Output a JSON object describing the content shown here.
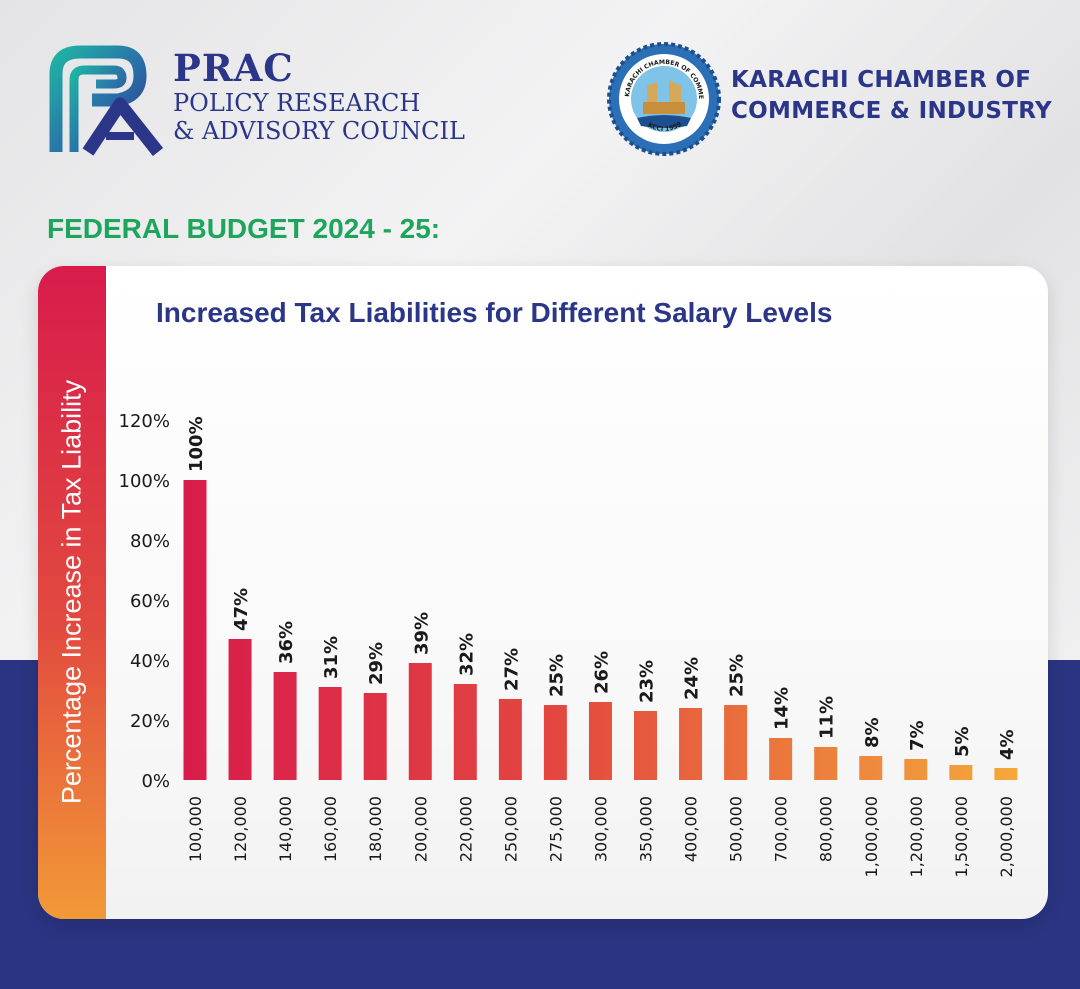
{
  "header": {
    "prac_name": "PRAC",
    "prac_line1": "POLICY RESEARCH",
    "prac_line2": "& ADVISORY COUNCIL",
    "kcci_line1": "KARACHI CHAMBER OF",
    "kcci_line2": "COMMERCE & INDUSTRY",
    "kcci_seal_text": "KARACHI CHAMBER OF COMMERCE & INDUSTRY",
    "kcci_seal_year": "KCCI 1959"
  },
  "budget_heading": "FEDERAL BUDGET 2024 - 25:",
  "colors": {
    "brand_blue": "#2b3689",
    "heading_green": "#1da65b",
    "bar_red": "#d81b4b",
    "bar_orange": "#f29a37",
    "bottom_band": "#2a3482"
  },
  "chart_data": {
    "type": "bar",
    "title": "Increased Tax Liabilities for Different Salary Levels",
    "xlabel": "",
    "ylabel": "Percentage Increase in Tax Liability",
    "categories": [
      "100,000",
      "120,000",
      "140,000",
      "160,000",
      "180,000",
      "200,000",
      "220,000",
      "250,000",
      "275,000",
      "300,000",
      "350,000",
      "400,000",
      "500,000",
      "700,000",
      "800,000",
      "1,000,000",
      "1,200,000",
      "1,500,000",
      "2,000,000"
    ],
    "values": [
      100,
      47,
      36,
      31,
      29,
      39,
      32,
      27,
      25,
      26,
      23,
      24,
      25,
      14,
      11,
      8,
      7,
      5,
      4
    ],
    "data_labels": [
      "100%",
      "47%",
      "36%",
      "31%",
      "29%",
      "39%",
      "32%",
      "27%",
      "25%",
      "26%",
      "23%",
      "24%",
      "25%",
      "14%",
      "11%",
      "8%",
      "7%",
      "5%",
      "4%"
    ],
    "ylim": [
      0,
      120
    ],
    "yticks": [
      0,
      20,
      40,
      60,
      80,
      100,
      120
    ],
    "ytick_labels": [
      "0%",
      "20%",
      "40%",
      "60%",
      "80%",
      "100%",
      "120%"
    ],
    "grid": false,
    "legend": "none"
  }
}
